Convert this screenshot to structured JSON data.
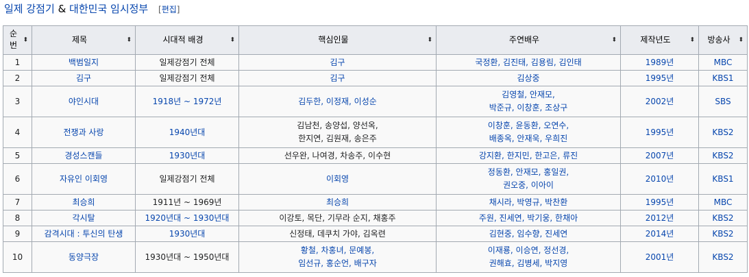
{
  "heading": {
    "part1": "일제 강점기",
    "amp": "&",
    "part2": "대한민국 임시정부",
    "edit": "편집"
  },
  "headers": [
    "순번",
    "제목",
    "시대적 배경",
    "핵심인물",
    "주연배우",
    "제작년도",
    "방송사"
  ],
  "rows": [
    {
      "no": "1",
      "title": "백범일지",
      "period": "일제강점기 전체",
      "figures": [
        "김구"
      ],
      "actors": [
        "국정환, 김진태, 김용림, 김인태"
      ],
      "year": "1989년",
      "broadcaster": "MBC",
      "period_link": false,
      "figures_link": true
    },
    {
      "no": "2",
      "title": "김구",
      "period": "일제강점기 전체",
      "figures": [
        "김구"
      ],
      "actors": [
        "김상중"
      ],
      "year": "1995년",
      "broadcaster": "KBS1",
      "period_link": false,
      "figures_link": true
    },
    {
      "no": "3",
      "title": "야인시대",
      "period": "1918년 ~ 1972년",
      "figures": [
        "김두한, 이정재, 이성순"
      ],
      "actors": [
        "김영철, 안재모,",
        "박준규, 이창훈, 조상구"
      ],
      "year": "2002년",
      "broadcaster": "SBS",
      "period_link": true,
      "figures_link": true
    },
    {
      "no": "4",
      "title": "전쟁과 사랑",
      "period": "1940년대",
      "figures": [
        "김남천, 송양섭, 양선옥,",
        "한지연, 김원재, 송은주"
      ],
      "actors": [
        "이창훈, 윤동환, 오연수,",
        "배종옥, 안재욱, 우희진"
      ],
      "year": "1995년",
      "broadcaster": "KBS2",
      "period_link": true,
      "figures_link": false
    },
    {
      "no": "5",
      "title": "경성스캔들",
      "period": "1930년대",
      "figures": [
        "선우완, 나여경, 차송주, 이수현"
      ],
      "actors": [
        "강지환, 한지민, 한고은, 류진"
      ],
      "year": "2007년",
      "broadcaster": "KBS2",
      "period_link": true,
      "figures_link": false
    },
    {
      "no": "6",
      "title": "자유인 이회영",
      "period": "일제강점기 전체",
      "figures": [
        "이회영"
      ],
      "actors": [
        "정동환, 안재모, 홍일권,",
        "권오중, 이아이"
      ],
      "year": "2010년",
      "broadcaster": "KBS1",
      "period_link": false,
      "figures_link": true
    },
    {
      "no": "7",
      "title": "최승희",
      "period": "1911년 ~ 1969년",
      "figures": [
        "최승희"
      ],
      "actors": [
        "채시라, 박영규, 박찬환"
      ],
      "year": "1995년",
      "broadcaster": "MBC",
      "period_link": false,
      "figures_link": true
    },
    {
      "no": "8",
      "title": "각시탈",
      "period": "1920년대 ~ 1930년대",
      "figures": [
        "이강토, 목단, 기무라 순지, 채홍주"
      ],
      "actors": [
        "주원, 진세연, 박기웅, 한채아"
      ],
      "year": "2012년",
      "broadcaster": "KBS2",
      "period_link": true,
      "figures_link": false
    },
    {
      "no": "9",
      "title": "감격시대 : 투신의 탄생",
      "period": "1930년대",
      "figures": [
        "신정태, 데쿠치 가야, 김옥련"
      ],
      "actors": [
        "김현중, 임수향, 진세연"
      ],
      "year": "2014년",
      "broadcaster": "KBS2",
      "period_link": true,
      "figures_link": false
    },
    {
      "no": "10",
      "title": "동양극장",
      "period": "1930년대 ~ 1950년대",
      "figures": [
        "황철, 차홍녀, 문예봉,",
        "임선규, 홍순언, 배구자"
      ],
      "actors": [
        "이재룡, 이승연, 정선경,",
        "권해효, 김병세, 박지영"
      ],
      "year": "2001년",
      "broadcaster": "KBS2",
      "period_link": false,
      "figures_link": true
    }
  ],
  "colors": {
    "link": "#0645ad",
    "header_bg": "#eaecf0",
    "border": "#a2a9b1"
  }
}
